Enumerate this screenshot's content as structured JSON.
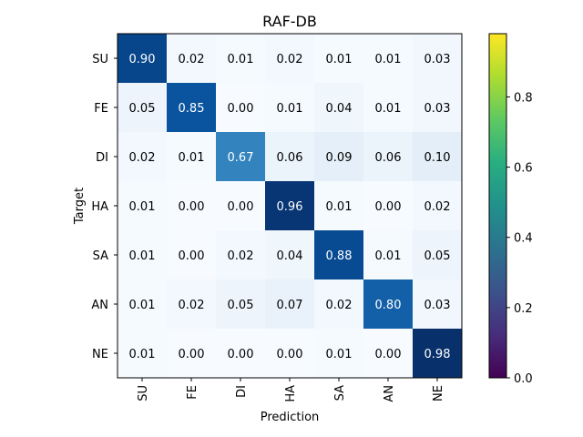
{
  "chart_data": {
    "type": "heatmap",
    "title": "RAF-DB",
    "xlabel": "Prediction",
    "ylabel": "Target",
    "x_categories": [
      "SU",
      "FE",
      "DI",
      "HA",
      "SA",
      "AN",
      "NE"
    ],
    "y_categories": [
      "SU",
      "FE",
      "DI",
      "HA",
      "SA",
      "AN",
      "NE"
    ],
    "values": [
      [
        0.9,
        0.02,
        0.01,
        0.02,
        0.01,
        0.01,
        0.03
      ],
      [
        0.05,
        0.85,
        0.0,
        0.01,
        0.04,
        0.01,
        0.03
      ],
      [
        0.02,
        0.01,
        0.67,
        0.06,
        0.09,
        0.06,
        0.1
      ],
      [
        0.01,
        0.0,
        0.0,
        0.96,
        0.01,
        0.0,
        0.02
      ],
      [
        0.01,
        0.0,
        0.02,
        0.04,
        0.88,
        0.01,
        0.05
      ],
      [
        0.01,
        0.02,
        0.05,
        0.07,
        0.02,
        0.8,
        0.03
      ],
      [
        0.01,
        0.0,
        0.0,
        0.0,
        0.01,
        0.0,
        0.98
      ]
    ],
    "value_range": [
      0.0,
      0.98
    ],
    "cell_colormap": "Blues",
    "colorbar": {
      "colormap": "viridis",
      "ticks": [
        0.0,
        0.2,
        0.4,
        0.6,
        0.8
      ],
      "tick_labels": [
        "0.0",
        "0.2",
        "0.4",
        "0.6",
        "0.8"
      ],
      "range": [
        0.0,
        0.98
      ]
    }
  }
}
